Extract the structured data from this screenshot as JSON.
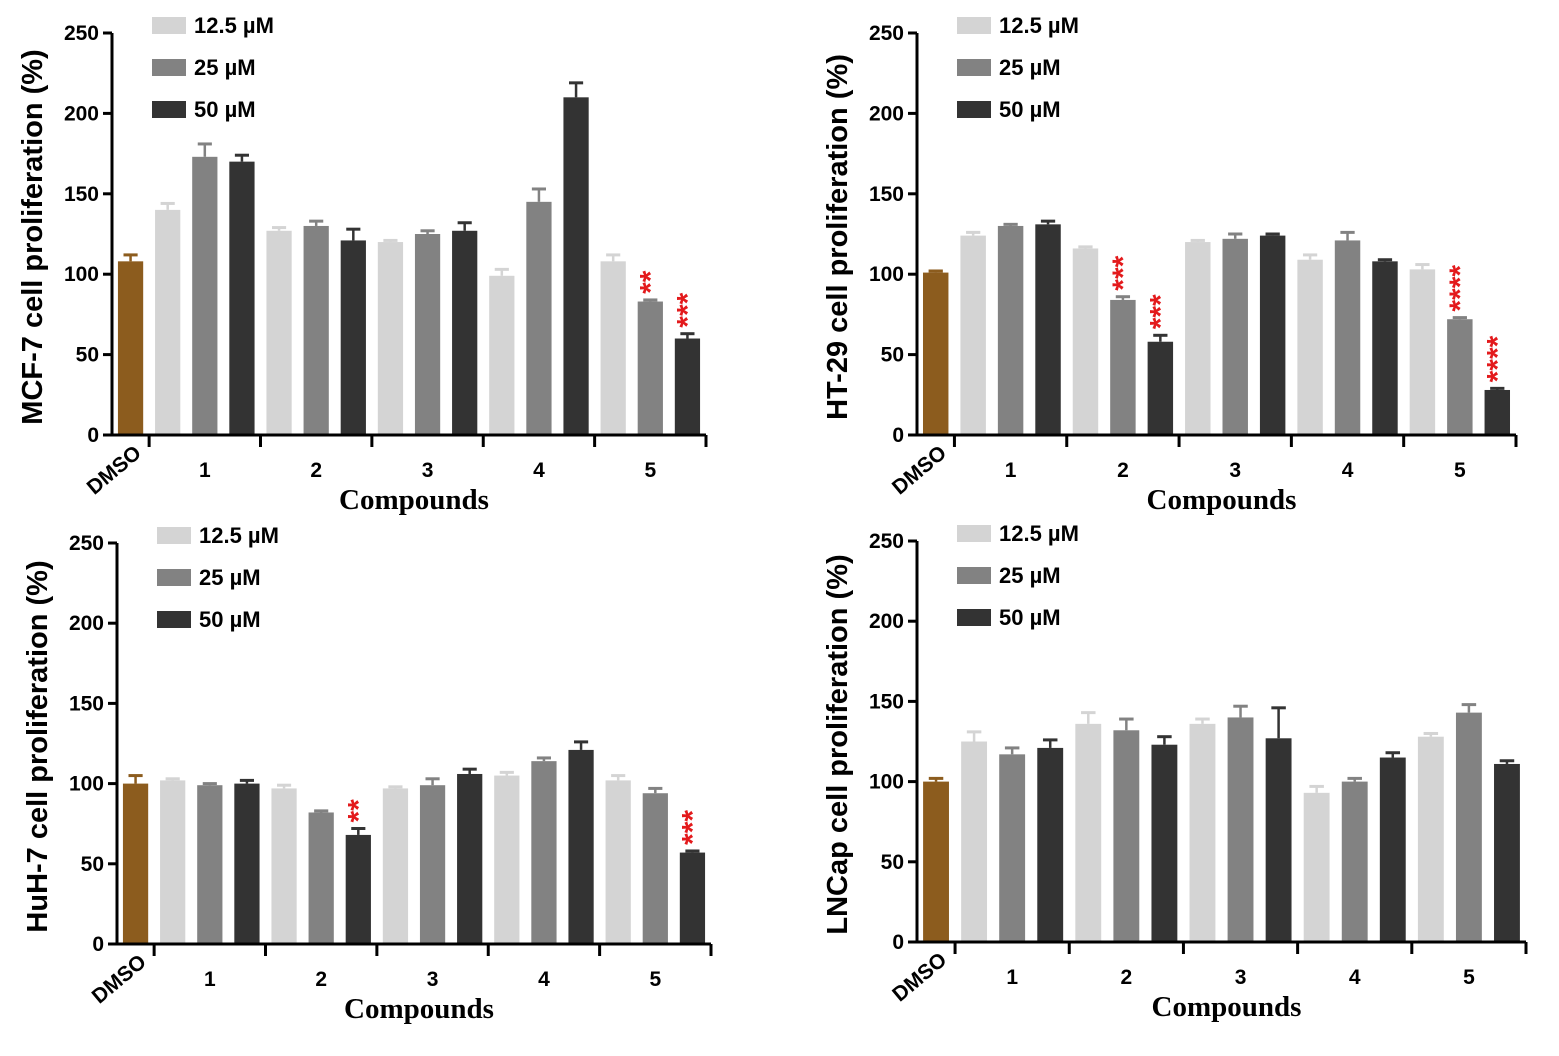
{
  "colors": {
    "DMSO": "#8c5c1e",
    "12.5 µM": "#d4d4d4",
    "25 µM": "#828282",
    "50 µM": "#333333",
    "axis": "#000000",
    "significance": "#e31a1c"
  },
  "chart_data": [
    {
      "type": "bar",
      "cell_line": "MCF-7",
      "ylabel": "MCF-7 cell proliferation (%)",
      "xlabel": "Compounds",
      "ylim": [
        0,
        250
      ],
      "yticks": [
        0,
        50,
        100,
        150,
        200,
        250
      ],
      "control": {
        "label": "DMSO",
        "value": 108,
        "error": 4
      },
      "categories": [
        "1",
        "2",
        "3",
        "4",
        "5"
      ],
      "series": [
        {
          "name": "12.5 µM",
          "values": [
            140,
            127,
            120,
            99,
            108
          ],
          "errors": [
            4,
            2,
            1,
            4,
            4
          ],
          "significance": [
            "",
            "",
            "",
            "",
            ""
          ]
        },
        {
          "name": "25 µM",
          "values": [
            173,
            130,
            125,
            145,
            83
          ],
          "errors": [
            8,
            3,
            2,
            8,
            1
          ],
          "significance": [
            "",
            "",
            "",
            "",
            "**"
          ]
        },
        {
          "name": "50 µM",
          "values": [
            170,
            121,
            127,
            210,
            60
          ],
          "errors": [
            4,
            7,
            5,
            9,
            3
          ],
          "significance": [
            "",
            "",
            "",
            "",
            "***"
          ]
        }
      ],
      "legend": [
        "12.5 µM",
        "25 µM",
        "50 µM"
      ]
    },
    {
      "type": "bar",
      "cell_line": "HT-29",
      "ylabel": "HT-29 cell proliferation (%)",
      "xlabel": "Compounds",
      "ylim": [
        0,
        250
      ],
      "yticks": [
        0,
        50,
        100,
        150,
        200,
        250
      ],
      "control": {
        "label": "DMSO",
        "value": 101,
        "error": 1
      },
      "categories": [
        "1",
        "2",
        "3",
        "4",
        "5"
      ],
      "series": [
        {
          "name": "12.5 µM",
          "values": [
            124,
            116,
            120,
            109,
            103
          ],
          "errors": [
            2,
            1,
            1,
            3,
            3
          ],
          "significance": [
            "",
            "",
            "",
            "",
            ""
          ]
        },
        {
          "name": "25 µM",
          "values": [
            130,
            84,
            122,
            121,
            72
          ],
          "errors": [
            1,
            2,
            3,
            5,
            1
          ],
          "significance": [
            "",
            "***",
            "",
            "",
            "****"
          ]
        },
        {
          "name": "50 µM",
          "values": [
            131,
            58,
            124,
            108,
            28
          ],
          "errors": [
            2,
            4,
            1,
            1,
            1
          ],
          "significance": [
            "",
            "***",
            "",
            "",
            "****"
          ]
        }
      ],
      "legend": [
        "12.5 µM",
        "25 µM",
        "50 µM"
      ]
    },
    {
      "type": "bar",
      "cell_line": "HuH-7",
      "ylabel": "HuH-7 cell proliferation (%)",
      "xlabel": "Compounds",
      "ylim": [
        0,
        250
      ],
      "yticks": [
        0,
        50,
        100,
        150,
        200,
        250
      ],
      "control": {
        "label": "DMSO",
        "value": 100,
        "error": 5
      },
      "categories": [
        "1",
        "2",
        "3",
        "4",
        "5"
      ],
      "series": [
        {
          "name": "12.5 µM",
          "values": [
            102,
            97,
            97,
            105,
            102
          ],
          "errors": [
            1,
            2,
            1,
            2,
            3
          ],
          "significance": [
            "",
            "",
            "",
            "",
            ""
          ]
        },
        {
          "name": "25 µM",
          "values": [
            99,
            82,
            99,
            114,
            94
          ],
          "errors": [
            1,
            1,
            4,
            2,
            3
          ],
          "significance": [
            "",
            "",
            "",
            "",
            ""
          ]
        },
        {
          "name": "50 µM",
          "values": [
            100,
            68,
            106,
            121,
            57
          ],
          "errors": [
            2,
            4,
            3,
            5,
            1
          ],
          "significance": [
            "",
            "**",
            "",
            "",
            "***"
          ]
        }
      ],
      "legend": [
        "12.5 µM",
        "25 µM",
        "50 µM"
      ]
    },
    {
      "type": "bar",
      "cell_line": "LNCap",
      "ylabel": "LNCap cell proliferation (%)",
      "xlabel": "Compounds",
      "ylim": [
        0,
        250
      ],
      "yticks": [
        0,
        50,
        100,
        150,
        200,
        250
      ],
      "control": {
        "label": "DMSO",
        "value": 100,
        "error": 2
      },
      "categories": [
        "1",
        "2",
        "3",
        "4",
        "5"
      ],
      "series": [
        {
          "name": "12.5 µM",
          "values": [
            125,
            136,
            136,
            93,
            128
          ],
          "errors": [
            6,
            7,
            3,
            4,
            2
          ],
          "significance": [
            "",
            "",
            "",
            "",
            ""
          ]
        },
        {
          "name": "25 µM",
          "values": [
            117,
            132,
            140,
            100,
            143
          ],
          "errors": [
            4,
            7,
            7,
            2,
            5
          ],
          "significance": [
            "",
            "",
            "",
            "",
            ""
          ]
        },
        {
          "name": "50 µM",
          "values": [
            121,
            123,
            127,
            115,
            111
          ],
          "errors": [
            5,
            5,
            19,
            3,
            2
          ],
          "significance": [
            "",
            "",
            "",
            "",
            ""
          ]
        }
      ],
      "legend": [
        "12.5 µM",
        "25 µM",
        "50 µM"
      ]
    }
  ]
}
